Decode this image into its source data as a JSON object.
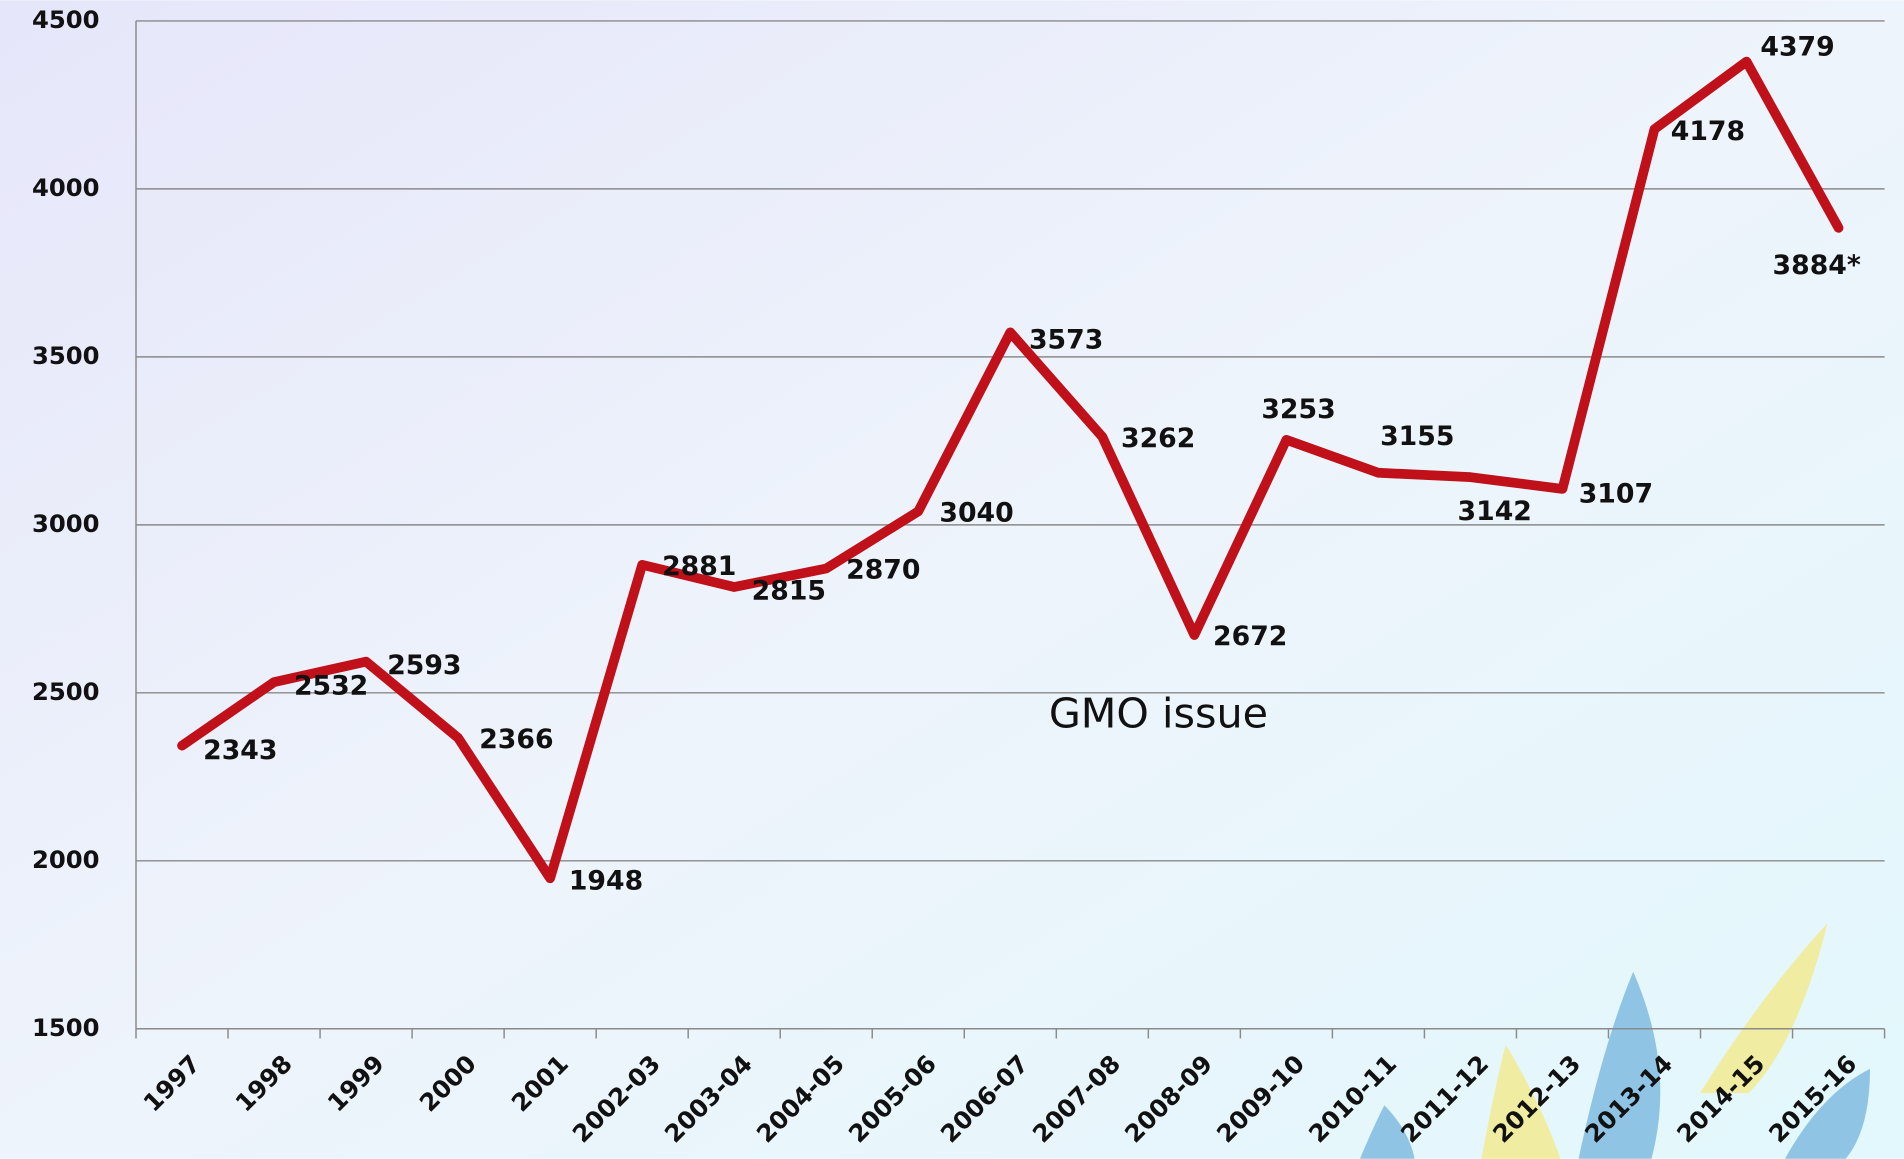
{
  "chart_data": {
    "type": "line",
    "annotation": "GMO  issue",
    "categories": [
      "1997",
      "1998",
      "1999",
      "2000",
      "2001",
      "2002-03",
      "2003-04",
      "2004-05",
      "2005-06",
      "2006-07",
      "2007-08",
      "2008-09",
      "2009-10",
      "2010-11",
      "2011-12",
      "2012-13",
      "2013-14",
      "2014-15",
      "2015-16"
    ],
    "values": [
      2343,
      2532,
      2593,
      2366,
      1948,
      2881,
      2815,
      2870,
      3040,
      3573,
      3262,
      2672,
      3253,
      3155,
      3142,
      3107,
      4178,
      4379,
      3884
    ],
    "value_labels": [
      "2343",
      "2532",
      "2593",
      "2366",
      "1948",
      "2881",
      "2815",
      "2870",
      "3040",
      "3573",
      "3262",
      "2672",
      "3253",
      "3155",
      "3142",
      "3107",
      "4178",
      "4379",
      "3884*"
    ],
    "color": "#c0101a",
    "ylim": [
      1500,
      4500
    ],
    "yticks": [
      1500,
      2000,
      2500,
      3000,
      3500,
      4000,
      4500
    ],
    "grid": true
  }
}
